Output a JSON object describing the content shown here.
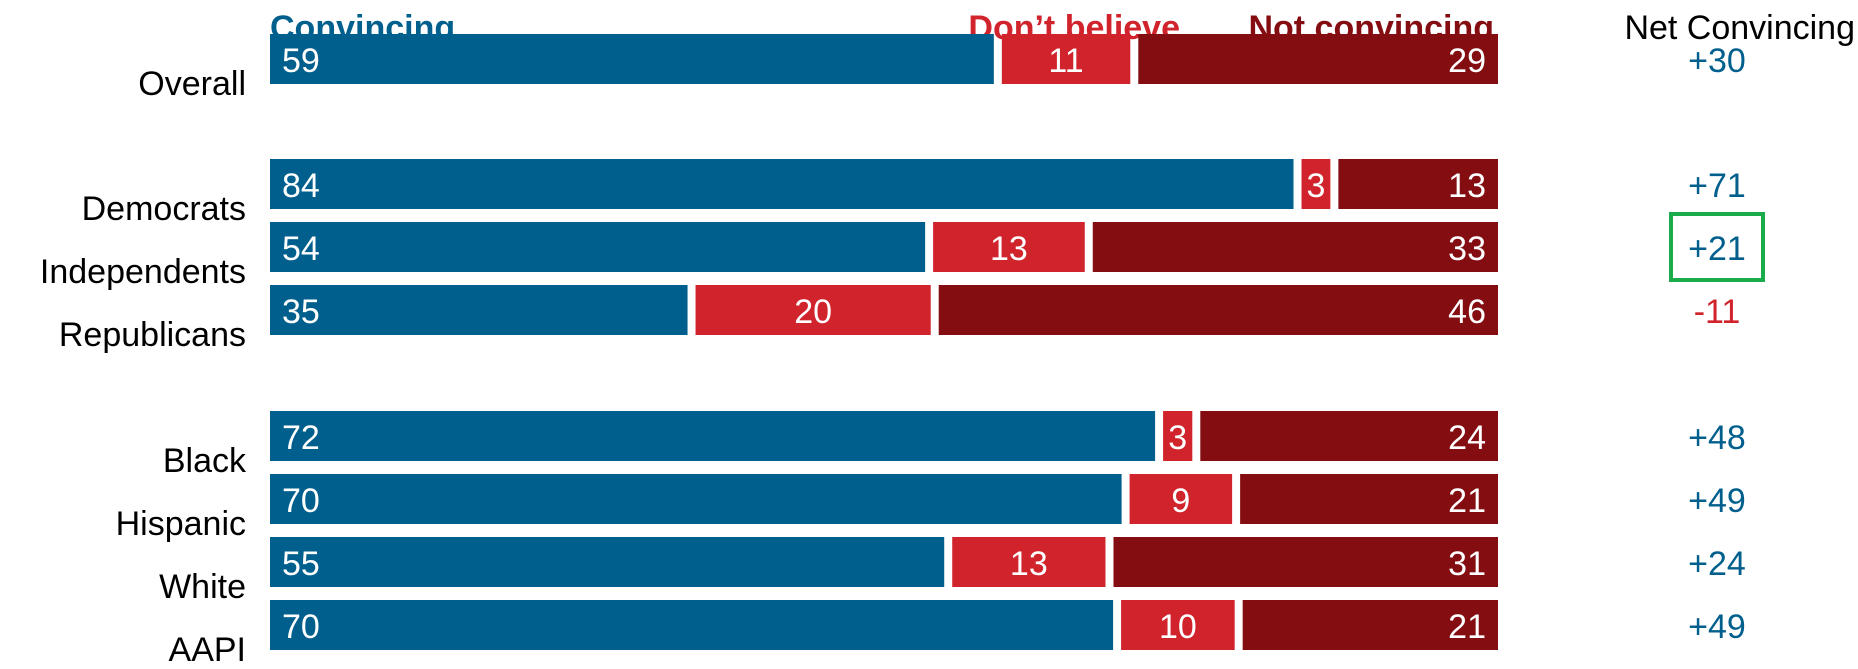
{
  "colors": {
    "convincing": "#005f8c",
    "dont_believe": "#d0232b",
    "not_convincing": "#840d12",
    "net_positive": "#005f8c",
    "net_negative": "#d0232b",
    "highlight": "#1aab4b"
  },
  "chart_data": {
    "type": "bar",
    "orientation": "horizontal",
    "stacked": true,
    "xlim": [
      0,
      100
    ],
    "legend": [
      "Convincing",
      "Don’t believe",
      "Not convincing"
    ],
    "net_header": "Net Convincing",
    "categories": [
      "Overall",
      "Democrats",
      "Independents",
      "Republicans",
      "Black",
      "Hispanic",
      "White",
      "AAPI"
    ],
    "groups": [
      [
        0
      ],
      [
        1,
        2,
        3
      ],
      [
        4,
        5,
        6,
        7
      ]
    ],
    "series": [
      {
        "name": "Convincing",
        "values": [
          59,
          84,
          54,
          35,
          72,
          70,
          55,
          70
        ]
      },
      {
        "name": "Don’t believe",
        "values": [
          11,
          3,
          13,
          20,
          3,
          9,
          13,
          10
        ]
      },
      {
        "name": "Not convincing",
        "values": [
          29,
          13,
          33,
          46,
          24,
          21,
          31,
          21
        ]
      }
    ],
    "net": [
      "+30",
      "+71",
      "+21",
      "-11",
      "+48",
      "+49",
      "+24",
      "+49"
    ],
    "highlighted_net": "Independents"
  }
}
